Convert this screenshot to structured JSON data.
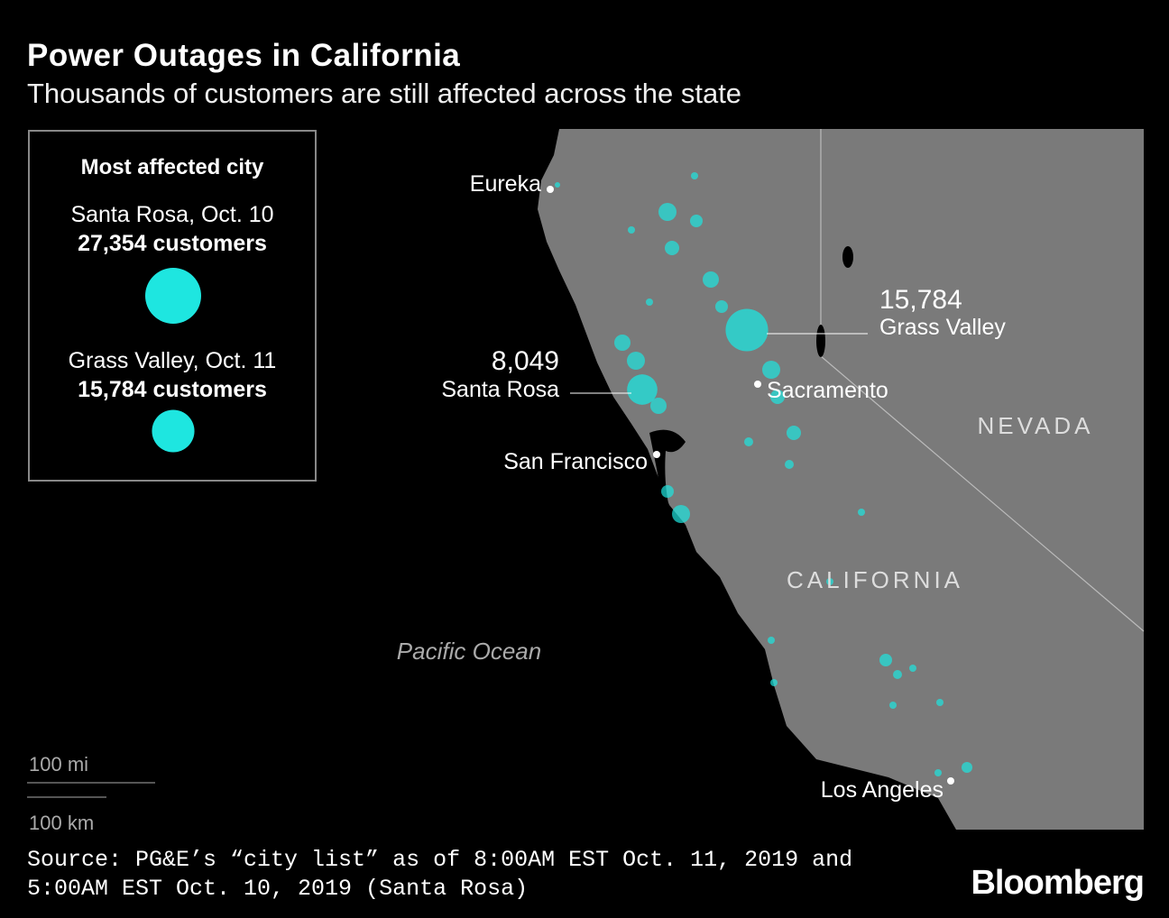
{
  "header": {
    "title": "Power Outages in California",
    "subtitle": "Thousands of customers are still affected across the state"
  },
  "legend": {
    "title": "Most affected city",
    "items": [
      {
        "label": "Santa Rosa, Oct. 10",
        "value": 27354,
        "value_label": "27,354 customers"
      },
      {
        "label": "Grass Valley, Oct. 11",
        "value": 15784,
        "value_label": "15,784 customers"
      }
    ]
  },
  "map": {
    "places": [
      "Eureka",
      "San Francisco",
      "Sacramento",
      "Los Angeles"
    ],
    "regions": [
      "NEVADA",
      "CALIFORNIA"
    ],
    "ocean": "Pacific Ocean",
    "callouts": [
      {
        "name": "Santa Rosa",
        "value": 8049,
        "value_label": "8,049"
      },
      {
        "name": "Grass Valley",
        "value": 15784,
        "value_label": "15,784"
      }
    ]
  },
  "scale": [
    "100 mi",
    "100 km"
  ],
  "footer": {
    "source": "Source: PG&E’s “city list” as of 8:00AM EST Oct. 11, 2019 and 5:00AM EST Oct. 10, 2019 (Santa Rosa)",
    "brand": "Bloomberg"
  }
}
